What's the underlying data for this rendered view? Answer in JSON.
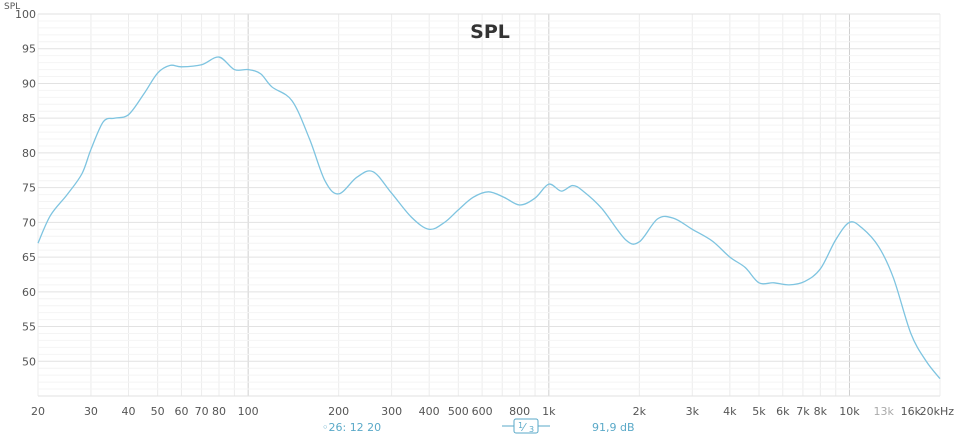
{
  "chart_data": {
    "type": "line",
    "title": "SPL",
    "ylabel": "SPL",
    "x_scale": "log",
    "xlim": [
      20,
      20000
    ],
    "ylim": [
      45,
      100
    ],
    "y_ticks": [
      50,
      55,
      60,
      65,
      70,
      75,
      80,
      85,
      90,
      95,
      100
    ],
    "x_ticks": [
      {
        "value": 20,
        "label": "20"
      },
      {
        "value": 30,
        "label": "30"
      },
      {
        "value": 40,
        "label": "40"
      },
      {
        "value": 50,
        "label": "50"
      },
      {
        "value": 60,
        "label": "60"
      },
      {
        "value": 70,
        "label": "70"
      },
      {
        "value": 80,
        "label": "80"
      },
      {
        "value": 100,
        "label": "100"
      },
      {
        "value": 200,
        "label": "200"
      },
      {
        "value": 300,
        "label": "300"
      },
      {
        "value": 400,
        "label": "400"
      },
      {
        "value": 500,
        "label": "500"
      },
      {
        "value": 600,
        "label": "600"
      },
      {
        "value": 800,
        "label": "800"
      },
      {
        "value": 1000,
        "label": "1k"
      },
      {
        "value": 2000,
        "label": "2k"
      },
      {
        "value": 3000,
        "label": "3k"
      },
      {
        "value": 4000,
        "label": "4k"
      },
      {
        "value": 5000,
        "label": "5k"
      },
      {
        "value": 6000,
        "label": "6k"
      },
      {
        "value": 7000,
        "label": "7k"
      },
      {
        "value": 8000,
        "label": "8k"
      },
      {
        "value": 10000,
        "label": "10k"
      },
      {
        "value": 13000,
        "label": "13k",
        "dim": true
      },
      {
        "value": 16000,
        "label": "16k"
      },
      {
        "value": 20000,
        "label": "20kHz"
      }
    ],
    "grid": true,
    "series": [
      {
        "color": "#7ec4e0",
        "x": [
          20,
          22,
          25,
          28,
          30,
          33,
          36,
          40,
          45,
          50,
          55,
          60,
          70,
          80,
          90,
          100,
          110,
          120,
          140,
          160,
          180,
          200,
          230,
          260,
          300,
          350,
          400,
          450,
          500,
          560,
          630,
          710,
          800,
          900,
          1000,
          1100,
          1200,
          1300,
          1500,
          1800,
          2000,
          2300,
          2600,
          3000,
          3500,
          4000,
          4500,
          5000,
          5600,
          6300,
          7100,
          8000,
          9000,
          10000,
          11000,
          12500,
          14000,
          16000,
          18000,
          20000
        ],
        "y": [
          67,
          71,
          74,
          77,
          80.5,
          84.5,
          85,
          85.5,
          88.5,
          91.5,
          92.6,
          92.4,
          92.7,
          93.8,
          92,
          92,
          91.4,
          89.5,
          87.5,
          82,
          76,
          74.1,
          76.5,
          77.3,
          74.2,
          70.7,
          69,
          70,
          71.8,
          73.6,
          74.4,
          73.6,
          72.5,
          73.5,
          75.5,
          74.5,
          75.3,
          74.5,
          72,
          67.5,
          67.2,
          70.5,
          70.6,
          69,
          67.3,
          65,
          63.5,
          61.3,
          61.3,
          61,
          61.5,
          63.3,
          67.5,
          70,
          69.2,
          66.5,
          62,
          54,
          50,
          47.5
        ]
      }
    ]
  },
  "footer": {
    "channel": "◦26: 12 20",
    "smoothing_num": "1",
    "smoothing_den": "3",
    "level": "91,9 dB"
  }
}
